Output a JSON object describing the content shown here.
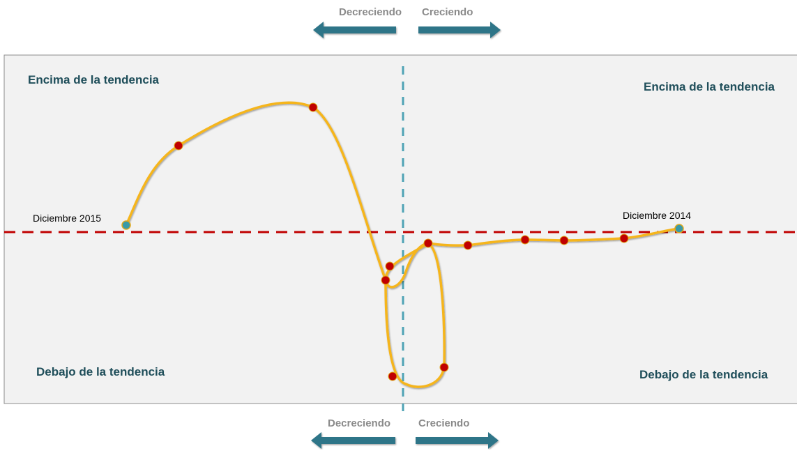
{
  "direction_labels": {
    "decreasing": "Decreciendo",
    "increasing": "Creciendo"
  },
  "quadrant_labels": {
    "top_left": "Encima de la tendencia",
    "top_right": "Encima de la tendencia",
    "bottom_left": "Debajo de la tendencia",
    "bottom_right": "Debajo de la tendencia"
  },
  "date_labels": {
    "start": "Diciembre 2015",
    "end": "Diciembre 2014"
  },
  "colors": {
    "panel_fill": "#f2f2f2",
    "panel_border": "#8c8c8c",
    "trend_line": "#c00000",
    "vertical_axis": "#4fa3b5",
    "curve": "#f5b51c",
    "point_fill": "#c00000",
    "endpoint_fill": "#3a9aa8",
    "arrow_fill": "#2d7488",
    "quadrant_text": "#1f4e5a",
    "direction_text": "#8a8a8a"
  }
}
